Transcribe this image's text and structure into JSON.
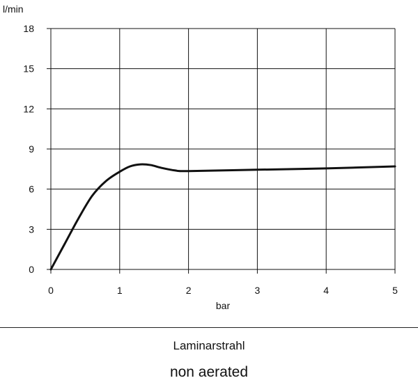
{
  "chart_data": {
    "type": "line",
    "ylabel": "l/min",
    "xlabel": "bar",
    "xlim": [
      0,
      5
    ],
    "ylim": [
      0,
      18
    ],
    "x_ticks": [
      0,
      1,
      2,
      3,
      4,
      5
    ],
    "y_ticks": [
      0,
      3,
      6,
      9,
      12,
      15,
      18
    ],
    "grid": true,
    "series": [
      {
        "x": [
          0,
          0.2,
          0.4,
          0.6,
          0.8,
          1.0,
          1.15,
          1.3,
          1.45,
          1.6,
          1.8,
          2.0,
          3.0,
          4.0,
          5.0
        ],
        "values": [
          0,
          1.9,
          3.8,
          5.5,
          6.6,
          7.3,
          7.7,
          7.85,
          7.8,
          7.6,
          7.4,
          7.35,
          7.45,
          7.55,
          7.7
        ]
      }
    ]
  },
  "caption": {
    "title": "Laminarstrahl",
    "subtitle": "non aerated"
  },
  "colors": {
    "line": "#111111",
    "grid": "#111111",
    "background": "#ffffff"
  }
}
